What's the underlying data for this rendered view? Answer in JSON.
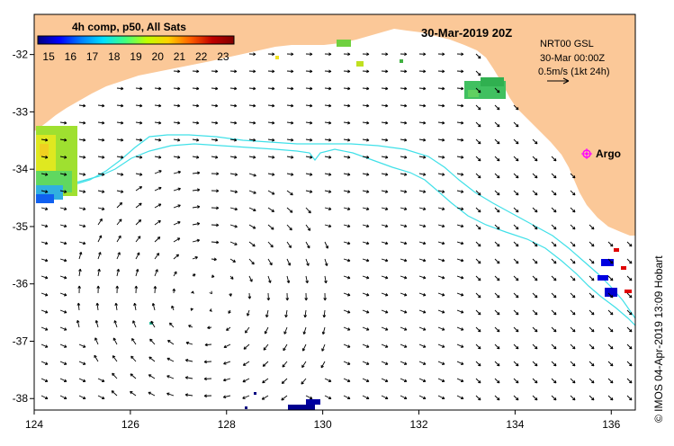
{
  "map": {
    "title": "30-Mar-2019 20Z",
    "colorbar": {
      "title": "4h comp, p50, All Sats",
      "ticks": [
        "15",
        "16",
        "17",
        "18",
        "19",
        "20",
        "21",
        "22",
        "23"
      ],
      "range": [
        14.5,
        23.5
      ],
      "stops": [
        "#000080",
        "#0000ff",
        "#0080ff",
        "#00e0ff",
        "#40ff80",
        "#c0ff00",
        "#ffd000",
        "#ff6000",
        "#c00000",
        "#800000"
      ]
    },
    "current_info": {
      "line1": "NRT00 GSL",
      "line2": "30-Mar 00:00Z",
      "line3": "0.5m/s (1kt 24h)"
    },
    "argo_label": "Argo",
    "credit": "© IMOS 04-Apr-2019 13:09 Hobart",
    "lon_range": [
      124,
      136.5
    ],
    "lat_range": [
      -38.2,
      -31.3
    ],
    "x_ticks": [
      "124",
      "126",
      "128",
      "130",
      "132",
      "134",
      "136"
    ],
    "y_ticks": [
      "-32",
      "-33",
      "-34",
      "-35",
      "-36",
      "-37",
      "-38"
    ],
    "colors": {
      "land": "#fbc898",
      "ocean": "#ffffff",
      "contour": "#40e0e8",
      "argo": "#ff00ff",
      "arrow": "#000000"
    }
  }
}
